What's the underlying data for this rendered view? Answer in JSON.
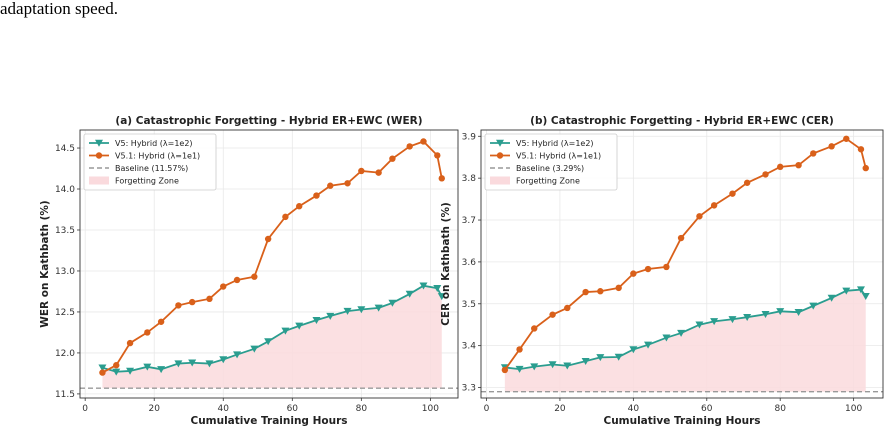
{
  "caption": "adaptation speed.",
  "chart_data": [
    {
      "type": "line",
      "title": "(a) Catastrophic Forgetting - Hybrid ER+EWC (WER)",
      "xlabel": "Cumulative Training Hours",
      "ylabel": "WER on Kathbath (%)",
      "xlim": [
        -1.5,
        108
      ],
      "ylim": [
        11.45,
        14.72
      ],
      "xticks": [
        0,
        20,
        40,
        60,
        80,
        100
      ],
      "xtick_labels": [
        "0",
        "20",
        "40",
        "60",
        "80",
        "100"
      ],
      "yticks": [
        11.5,
        12.0,
        12.5,
        13.0,
        13.5,
        14.0,
        14.5
      ],
      "ytick_labels": [
        "11.5",
        "12.0",
        "12.5",
        "13.0",
        "13.5",
        "14.0",
        "14.5"
      ],
      "grid": true,
      "legend_position": "upper-left",
      "baseline": {
        "name": "Baseline (11.57%)",
        "value": 11.57,
        "color": "#999999"
      },
      "fill": {
        "name": "Forgetting Zone",
        "color": "#fadadd",
        "between": [
          "baseline",
          "V5: Hybrid (λ=1e2)"
        ]
      },
      "series": [
        {
          "name": "V5: Hybrid (λ=1e2)",
          "color": "#2a9d8f",
          "marker": "triangle-down",
          "x": [
            5,
            9,
            13,
            18,
            22,
            27,
            31,
            36,
            40,
            44,
            49,
            53,
            58,
            62,
            67,
            71,
            76,
            80,
            85,
            89,
            94,
            98,
            102,
            103.3
          ],
          "y": [
            11.82,
            11.77,
            11.78,
            11.83,
            11.8,
            11.87,
            11.88,
            11.87,
            11.92,
            11.98,
            12.05,
            12.14,
            12.27,
            12.33,
            12.4,
            12.45,
            12.51,
            12.53,
            12.55,
            12.61,
            12.72,
            12.82,
            12.79,
            12.69
          ]
        },
        {
          "name": "V5.1: Hybrid (λ=1e1)",
          "color": "#d9601a",
          "marker": "circle",
          "x": [
            5,
            9,
            13,
            18,
            22,
            27,
            31,
            36,
            40,
            44,
            49,
            53,
            58,
            62,
            67,
            71,
            76,
            80,
            85,
            89,
            94,
            98,
            102,
            103.3
          ],
          "y": [
            11.76,
            11.85,
            12.12,
            12.25,
            12.38,
            12.58,
            12.62,
            12.66,
            12.81,
            12.89,
            12.93,
            13.39,
            13.66,
            13.79,
            13.92,
            14.04,
            14.07,
            14.22,
            14.2,
            14.37,
            14.52,
            14.58,
            14.41,
            14.13
          ]
        }
      ]
    },
    {
      "type": "line",
      "title": "(b) Catastrophic Forgetting - Hybrid ER+EWC (CER)",
      "xlabel": "Cumulative Training Hours",
      "ylabel": "CER on Kathbath (%)",
      "xlim": [
        -1.5,
        108
      ],
      "ylim": [
        3.275,
        3.915
      ],
      "xticks": [
        0,
        20,
        40,
        60,
        80,
        100
      ],
      "xtick_labels": [
        "0",
        "20",
        "40",
        "60",
        "80",
        "100"
      ],
      "yticks": [
        3.3,
        3.4,
        3.5,
        3.6,
        3.7,
        3.8,
        3.9
      ],
      "ytick_labels": [
        "3.3",
        "3.4",
        "3.5",
        "3.6",
        "3.7",
        "3.8",
        "3.9"
      ],
      "grid": true,
      "legend_position": "upper-left",
      "baseline": {
        "name": "Baseline (3.29%)",
        "value": 3.29,
        "color": "#999999"
      },
      "fill": {
        "name": "Forgetting Zone",
        "color": "#fadadd",
        "between": [
          "baseline",
          "V5: Hybrid (λ=1e2)"
        ]
      },
      "series": [
        {
          "name": "V5: Hybrid (λ=1e2)",
          "color": "#2a9d8f",
          "marker": "triangle-down",
          "x": [
            5,
            9,
            13,
            18,
            22,
            27,
            31,
            36,
            40,
            44,
            49,
            53,
            58,
            62,
            67,
            71,
            76,
            80,
            85,
            89,
            94,
            98,
            102,
            103.3
          ],
          "y": [
            3.348,
            3.344,
            3.35,
            3.355,
            3.352,
            3.363,
            3.372,
            3.373,
            3.391,
            3.402,
            3.419,
            3.43,
            3.45,
            3.458,
            3.463,
            3.468,
            3.475,
            3.482,
            3.48,
            3.495,
            3.514,
            3.531,
            3.534,
            3.518
          ]
        },
        {
          "name": "V5.1: Hybrid (λ=1e1)",
          "color": "#d9601a",
          "marker": "circle",
          "x": [
            5,
            9,
            13,
            18,
            22,
            27,
            31,
            36,
            40,
            44,
            49,
            53,
            58,
            62,
            67,
            71,
            76,
            80,
            85,
            89,
            94,
            98,
            102,
            103.3
          ],
          "y": [
            3.342,
            3.391,
            3.441,
            3.474,
            3.49,
            3.528,
            3.53,
            3.538,
            3.572,
            3.583,
            3.588,
            3.657,
            3.709,
            3.735,
            3.763,
            3.789,
            3.809,
            3.827,
            3.831,
            3.859,
            3.876,
            3.894,
            3.869,
            3.824
          ]
        }
      ]
    }
  ]
}
